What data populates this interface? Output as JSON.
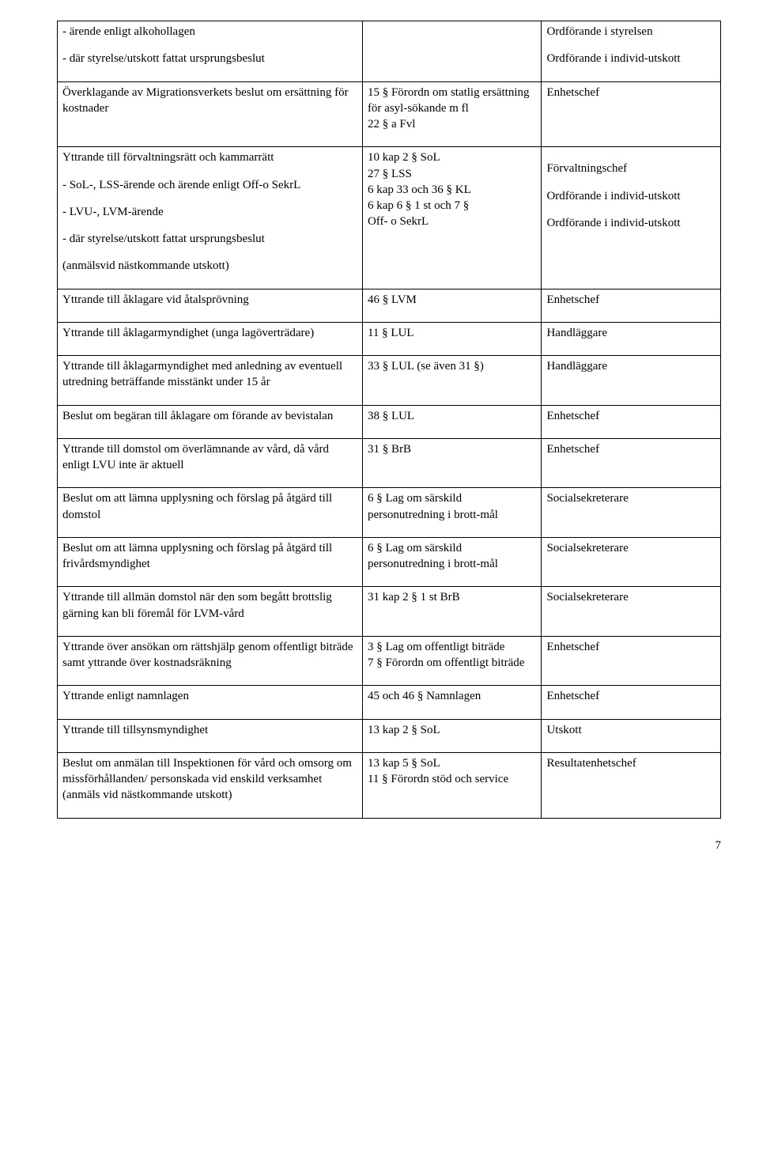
{
  "pageNumber": "7",
  "rows": [
    {
      "c1": [
        "- ärende enligt alkohollagen",
        "- där styrelse/utskott fattat ursprungsbeslut"
      ],
      "c2": [
        ""
      ],
      "c3": [
        "Ordförande i styrelsen",
        "Ordförande i individ-utskott"
      ]
    },
    {
      "c1": [
        "Överklagande av Migrationsverkets beslut om ersättning för kostnader"
      ],
      "c2": [
        "15 § Förordn om statlig ersättning för asyl-sökande m fl\n22 § a Fvl"
      ],
      "c3": [
        "Enhetschef"
      ]
    },
    {
      "c1": [
        "Yttrande till förvaltningsrätt och kammarrätt",
        "- SoL-, LSS-ärende och ärende enligt Off-o SekrL",
        "- LVU-, LVM-ärende",
        "- där styrelse/utskott fattat ursprungsbeslut",
        "(anmälsvid nästkommande utskott)"
      ],
      "c2": [
        "10 kap 2 § SoL\n27 § LSS\n6 kap 33 och 36 § KL\n6 kap 6 § 1 st och 7 §\nOff- o SekrL"
      ],
      "c3": [
        "",
        "Förvaltningschef",
        "Ordförande i individ-utskott",
        "Ordförande i individ-utskott"
      ]
    },
    {
      "c1": [
        "Yttrande till åklagare vid åtalsprövning"
      ],
      "c2": [
        "46 § LVM"
      ],
      "c3": [
        "Enhetschef"
      ]
    },
    {
      "c1": [
        "Yttrande till åklagarmyndighet (unga lagöverträdare)"
      ],
      "c2": [
        "11 § LUL"
      ],
      "c3": [
        "Handläggare"
      ]
    },
    {
      "c1": [
        "Yttrande till åklagarmyndighet med anledning av eventuell utredning beträffande misstänkt under 15 år"
      ],
      "c2": [
        "33 § LUL (se även 31 §)"
      ],
      "c3": [
        "Handläggare"
      ]
    },
    {
      "c1": [
        "Beslut om begäran till åklagare om förande av bevistalan"
      ],
      "c2": [
        "38 § LUL"
      ],
      "c3": [
        "Enhetschef"
      ]
    },
    {
      "c1": [
        "Yttrande till domstol om överlämnande av vård, då vård enligt LVU inte är aktuell"
      ],
      "c2": [
        "31 § BrB"
      ],
      "c3": [
        "Enhetschef"
      ]
    },
    {
      "c1": [
        "Beslut om att lämna upplysning och förslag på åtgärd till domstol"
      ],
      "c2": [
        "6 § Lag om särskild personutredning i brott-mål"
      ],
      "c3": [
        "Socialsekreterare"
      ]
    },
    {
      "c1": [
        "Beslut om att lämna upplysning och förslag på åtgärd till frivårdsmyndighet"
      ],
      "c2": [
        "6 § Lag om särskild personutredning i brott-mål"
      ],
      "c3": [
        "Socialsekreterare"
      ]
    },
    {
      "c1": [
        "Yttrande till allmän domstol när den som begått brottslig gärning kan bli föremål för LVM-vård"
      ],
      "c2": [
        "31 kap 2 § 1 st BrB"
      ],
      "c3": [
        "Socialsekreterare"
      ]
    },
    {
      "c1": [
        "Yttrande över ansökan om rättshjälp genom offentligt biträde samt yttrande över kostnadsräkning"
      ],
      "c2": [
        "3 § Lag om offentligt biträde\n7 § Förordn om offentligt biträde"
      ],
      "c3": [
        "Enhetschef"
      ]
    },
    {
      "c1": [
        "Yttrande enligt namnlagen"
      ],
      "c2": [
        "45 och 46 § Namnlagen"
      ],
      "c3": [
        "Enhetschef"
      ]
    },
    {
      "c1": [
        "Yttrande till tillsynsmyndighet"
      ],
      "c2": [
        "13 kap 2 § SoL"
      ],
      "c3": [
        "Utskott"
      ]
    },
    {
      "c1": [
        "Beslut om anmälan till Inspektionen för vård och omsorg om missförhållanden/ personskada vid enskild verksamhet\n(anmäls vid nästkommande utskott)"
      ],
      "c2": [
        "13 kap 5 § SoL\n11 § Förordn stöd och service"
      ],
      "c3": [
        "Resultatenhetschef"
      ]
    }
  ]
}
